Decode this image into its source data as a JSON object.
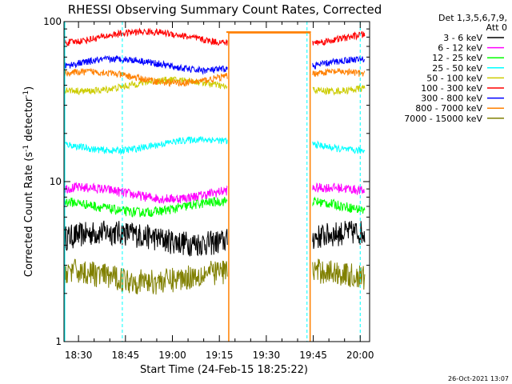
{
  "chart_data": {
    "type": "line",
    "title": "RHESSI Observing Summary Count Rates, Corrected",
    "xlabel": "Start Time (24-Feb-15 18:25:22)",
    "ylabel": "Corrected Count Rate (s",
    "ylabel_sup1": "-1",
    "ylabel_mid": " detector",
    "ylabel_sup2": "-1",
    "ylabel_end": ")",
    "y_scale": "log",
    "ylim": [
      1,
      100
    ],
    "xlim": [
      "18:25:22",
      "20:03:00"
    ],
    "x_ticks": [
      "18:30",
      "18:45",
      "19:00",
      "19:15",
      "19:30",
      "19:45",
      "20:00"
    ],
    "y_ticks": [
      "1",
      "10",
      "100"
    ],
    "legend_header": [
      "Det 1,3,5,6,7,9,",
      "Att 0"
    ],
    "series": [
      {
        "name": "3 - 6 keV",
        "color": "#000000",
        "level": 4.5
      },
      {
        "name": "6 - 12 keV",
        "color": "#ff00ff",
        "level": 8.5
      },
      {
        "name": "12 - 25 keV",
        "color": "#00ff00",
        "level": 7.0
      },
      {
        "name": "25 - 50 keV",
        "color": "#00ffff",
        "level": 17.0
      },
      {
        "name": "50 - 100 keV",
        "color": "#cccc00",
        "level": 40.0
      },
      {
        "name": "100 - 300 keV",
        "color": "#ff0000",
        "level": 80.0
      },
      {
        "name": "300 - 800 keV",
        "color": "#0000ff",
        "level": 54.0
      },
      {
        "name": "800 - 7000 keV",
        "color": "#ff8000",
        "level": 45.0
      },
      {
        "name": "7000 - 15000 keV",
        "color": "#808000",
        "level": 2.6
      }
    ],
    "saa_gap": {
      "start": "19:18",
      "end": "19:44",
      "level": 85
    },
    "attenuator_lines": [
      "18:44",
      "19:43",
      "20:00"
    ],
    "footer_stamp": "26-Oct-2021 13:07"
  }
}
